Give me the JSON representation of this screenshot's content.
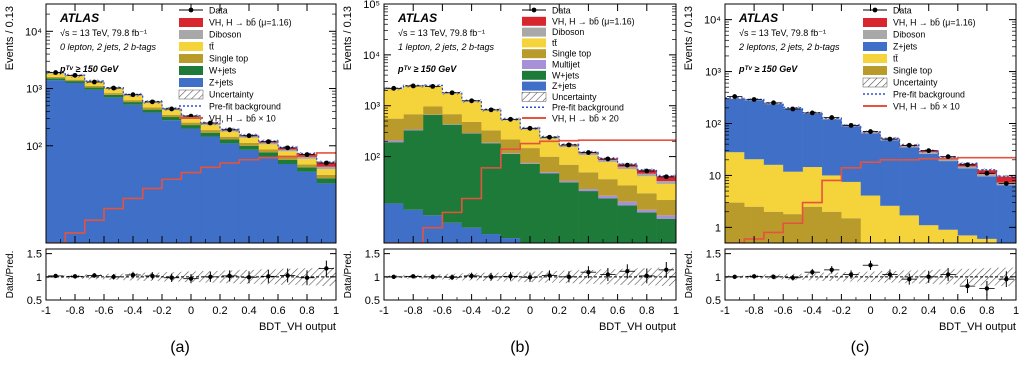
{
  "figure": {
    "panel_captions": [
      "(a)",
      "(b)",
      "(c)"
    ]
  },
  "chart_data": [
    {
      "type": "histogram",
      "caption": "(a)",
      "experiment": "ATLAS",
      "energy_line": "√s = 13 TeV, 79.8 fb⁻¹",
      "selection_line": "0 lepton, 2 jets, 2 b-tags",
      "cut_line": "pᵀᵛ ≥ 150 GeV",
      "ylabel": "Events / 0.13",
      "xlabel": "BDT_VH output",
      "ratio_ylabel": "Data/Pred.",
      "yscale": "log",
      "ylim": [
        2,
        30000
      ],
      "xlim": [
        -1,
        1
      ],
      "ratio_ylim": [
        0.5,
        1.6
      ],
      "yticks": [
        "10²",
        "10³",
        "10⁴"
      ],
      "xticks": [
        "-1",
        "-0.8",
        "-0.6",
        "-0.4",
        "-0.2",
        "0",
        "0.2",
        "0.4",
        "0.6",
        "0.8",
        "1"
      ],
      "ratio_yticks": [
        "0.5",
        "1",
        "1.5"
      ],
      "bin_edges": [
        -1,
        -0.867,
        -0.733,
        -0.6,
        -0.467,
        -0.333,
        -0.2,
        -0.067,
        0.067,
        0.2,
        0.333,
        0.467,
        0.6,
        0.733,
        0.867,
        1
      ],
      "stack": [
        {
          "name": "Z+jets",
          "color": "#3f6fc6",
          "values": [
            1400,
            1250,
            950,
            700,
            520,
            380,
            280,
            200,
            145,
            110,
            85,
            65,
            48,
            35,
            22
          ]
        },
        {
          "name": "W+jets",
          "color": "#1e7a38",
          "values": [
            110,
            100,
            90,
            75,
            60,
            48,
            38,
            30,
            24,
            19,
            15,
            12,
            9,
            7,
            5
          ]
        },
        {
          "name": "Single top",
          "color": "#b89b2a",
          "values": [
            90,
            80,
            70,
            58,
            47,
            38,
            30,
            24,
            19,
            15,
            12,
            9,
            7,
            5,
            4
          ]
        },
        {
          "name": "tt̄",
          "color": "#f5d33b",
          "values": [
            230,
            210,
            180,
            150,
            120,
            92,
            72,
            55,
            43,
            33,
            26,
            20,
            16,
            12,
            8
          ]
        },
        {
          "name": "Diboson",
          "color": "#a8a8a8",
          "values": [
            40,
            38,
            34,
            30,
            26,
            22,
            18,
            15,
            12,
            10,
            8,
            7,
            6,
            5,
            4
          ]
        },
        {
          "name": "VH, H → bb̄ (μ=1.16)",
          "color": "#d7262e",
          "values": [
            4,
            4,
            4,
            4,
            4,
            4,
            4,
            4,
            4,
            4,
            5,
            6,
            7,
            8,
            8
          ]
        }
      ],
      "data_points": [
        1900,
        1700,
        1300,
        1020,
        780,
        585,
        440,
        330,
        250,
        190,
        150,
        118,
        92,
        70,
        50
      ],
      "ratio_points": [
        1.02,
        1.01,
        1.03,
        1.0,
        1.04,
        1.02,
        0.98,
        0.96,
        1.0,
        1.02,
        0.99,
        1.01,
        1.03,
        0.98,
        1.18
      ],
      "signal_scaled_label": "VH, H → bb̄ × 10",
      "signal_scaled": [
        1.5,
        3,
        5,
        8,
        12,
        18,
        26,
        34,
        42,
        50,
        57,
        62,
        65,
        70,
        75
      ],
      "legend": [
        {
          "label": "Data",
          "kind": "data",
          "color": "#000000"
        },
        {
          "label": "VH, H → bb̄ (μ=1.16)",
          "kind": "box",
          "color": "#d7262e"
        },
        {
          "label": "Diboson",
          "kind": "box",
          "color": "#a8a8a8"
        },
        {
          "label": "tt̄",
          "kind": "box",
          "color": "#f5d33b"
        },
        {
          "label": "Single top",
          "kind": "box",
          "color": "#b89b2a"
        },
        {
          "label": "W+jets",
          "kind": "box",
          "color": "#1e7a38"
        },
        {
          "label": "Z+jets",
          "kind": "box",
          "color": "#3f6fc6"
        },
        {
          "label": "Uncertainty",
          "kind": "hatch",
          "color": "#666666"
        },
        {
          "label": "Pre-fit background",
          "kind": "dash",
          "color": "#2b4fd6"
        },
        {
          "label": "VH, H → bb̄ × 10",
          "kind": "line",
          "color": "#e5533f"
        }
      ]
    },
    {
      "type": "histogram",
      "caption": "(b)",
      "experiment": "ATLAS",
      "energy_line": "√s = 13 TeV, 79.8 fb⁻¹",
      "selection_line": "1 lepton, 2 jets, 2 b-tags",
      "cut_line": "pᵀᵛ ≥ 150 GeV",
      "ylabel": "Events / 0.13",
      "xlabel": "BDT_VH output",
      "ratio_ylabel": "Data/Pred.",
      "yscale": "log",
      "ylim": [
        2,
        100000
      ],
      "xlim": [
        -1,
        1
      ],
      "ratio_ylim": [
        0.5,
        1.6
      ],
      "yticks": [
        "10²",
        "10³",
        "10⁴",
        "10⁵"
      ],
      "xticks": [
        "-1",
        "-0.8",
        "-0.6",
        "-0.4",
        "-0.2",
        "0",
        "0.2",
        "0.4",
        "0.6",
        "0.8",
        "1"
      ],
      "ratio_yticks": [
        "0.5",
        "1",
        "1.5"
      ],
      "bin_edges": [
        -1,
        -0.867,
        -0.733,
        -0.6,
        -0.467,
        -0.333,
        -0.2,
        -0.067,
        0.067,
        0.2,
        0.333,
        0.467,
        0.6,
        0.733,
        0.867,
        1
      ],
      "stack": [
        {
          "name": "Z+jets",
          "color": "#3f6fc6",
          "values": [
            12,
            9,
            7,
            5,
            4,
            3,
            2.5,
            2,
            1.5,
            1.2,
            1,
            1,
            1,
            1,
            1
          ]
        },
        {
          "name": "W+jets",
          "color": "#1e7a38",
          "values": [
            180,
            320,
            650,
            420,
            280,
            180,
            110,
            70,
            45,
            30,
            20,
            14,
            10,
            7,
            5
          ]
        },
        {
          "name": "Multijet",
          "color": "#a890d8",
          "values": [
            15,
            12,
            10,
            8,
            6,
            5,
            4,
            3,
            3,
            2,
            2,
            2,
            2,
            1,
            1
          ]
        },
        {
          "name": "Single top",
          "color": "#b89b2a",
          "values": [
            350,
            340,
            300,
            250,
            190,
            140,
            100,
            72,
            50,
            36,
            26,
            19,
            14,
            10,
            7
          ]
        },
        {
          "name": "tt̄",
          "color": "#f5d33b",
          "values": [
            1550,
            1700,
            1450,
            1050,
            720,
            470,
            300,
            190,
            125,
            85,
            58,
            42,
            30,
            22,
            15
          ]
        },
        {
          "name": "Diboson",
          "color": "#a8a8a8",
          "values": [
            60,
            55,
            50,
            42,
            35,
            28,
            22,
            18,
            14,
            11,
            9,
            7,
            6,
            5,
            4
          ]
        },
        {
          "name": "VH, H → bb̄ (μ=1.16)",
          "color": "#d7262e",
          "values": [
            3,
            3,
            3,
            3,
            3,
            3,
            3,
            3,
            3,
            4,
            5,
            6,
            7,
            8,
            8
          ]
        }
      ],
      "data_points": [
        2200,
        2450,
        2400,
        1800,
        1250,
        830,
        540,
        360,
        240,
        170,
        120,
        90,
        68,
        52,
        40
      ],
      "ratio_points": [
        1.0,
        1.01,
        1.0,
        0.99,
        1.02,
        1.0,
        1.01,
        0.99,
        1.03,
        1.0,
        1.1,
        1.05,
        1.12,
        1.02,
        1.15
      ],
      "signal_scaled_label": "VH, H → bb̄ × 20",
      "signal_scaled": [
        1.2,
        2,
        4,
        8,
        15,
        60,
        140,
        180,
        200,
        205,
        210,
        210,
        210,
        210,
        210
      ],
      "legend": [
        {
          "label": "Data",
          "kind": "data",
          "color": "#000000"
        },
        {
          "label": "VH, H → bb̄ (μ=1.16)",
          "kind": "box",
          "color": "#d7262e"
        },
        {
          "label": "Diboson",
          "kind": "box",
          "color": "#a8a8a8"
        },
        {
          "label": "tt̄",
          "kind": "box",
          "color": "#f5d33b"
        },
        {
          "label": "Single top",
          "kind": "box",
          "color": "#b89b2a"
        },
        {
          "label": "Multijet",
          "kind": "box",
          "color": "#a890d8"
        },
        {
          "label": "W+jets",
          "kind": "box",
          "color": "#1e7a38"
        },
        {
          "label": "Z+jets",
          "kind": "box",
          "color": "#3f6fc6"
        },
        {
          "label": "Uncertainty",
          "kind": "hatch",
          "color": "#666666"
        },
        {
          "label": "Pre-fit background",
          "kind": "dash",
          "color": "#2b4fd6"
        },
        {
          "label": "VH, H → bb̄ × 20",
          "kind": "line",
          "color": "#e5533f"
        }
      ]
    },
    {
      "type": "histogram",
      "caption": "(c)",
      "experiment": "ATLAS",
      "energy_line": "√s = 13 TeV, 79.8 fb⁻¹",
      "selection_line": "2 leptons, 2 jets, 2 b-tags",
      "cut_line": "pᵀᵛ ≥ 150 GeV",
      "ylabel": "Events / 0.13",
      "xlabel": "BDT_VH output",
      "ratio_ylabel": "Data/Pred.",
      "yscale": "log",
      "ylim": [
        0.5,
        20000
      ],
      "xlim": [
        -1,
        1
      ],
      "ratio_ylim": [
        0.5,
        1.6
      ],
      "yticks": [
        "1",
        "10",
        "10²",
        "10³",
        "10⁴"
      ],
      "xticks": [
        "-1",
        "-0.8",
        "-0.6",
        "-0.4",
        "-0.2",
        "0",
        "0.2",
        "0.4",
        "0.6",
        "0.8",
        "1"
      ],
      "ratio_yticks": [
        "0.5",
        "1",
        "1.5"
      ],
      "bin_edges": [
        -1,
        -0.867,
        -0.733,
        -0.6,
        -0.467,
        -0.333,
        -0.2,
        -0.067,
        0.067,
        0.2,
        0.333,
        0.467,
        0.6,
        0.733,
        0.867,
        1
      ],
      "stack": [
        {
          "name": "Single top",
          "color": "#b89b2a",
          "values": [
            3,
            2.5,
            2,
            1.8,
            2.5,
            2,
            1.5,
            0.1,
            0.1,
            0.1,
            0.1,
            0.1,
            0.1,
            0.1,
            0.1
          ]
        },
        {
          "name": "tt̄",
          "color": "#f5d33b",
          "values": [
            25,
            18,
            14,
            10,
            12,
            8,
            6,
            4,
            2.5,
            1.6,
            1.0,
            0.8,
            0.6,
            0.5,
            0.4
          ]
        },
        {
          "name": "Z+jets",
          "color": "#3f6fc6",
          "values": [
            270,
            260,
            220,
            180,
            140,
            110,
            80,
            60,
            45,
            33,
            25,
            18,
            13,
            9,
            6
          ]
        },
        {
          "name": "Diboson",
          "color": "#a8a8a8",
          "values": [
            6,
            6,
            5,
            5,
            4,
            4,
            3,
            3,
            2.5,
            2,
            2,
            1.5,
            1.2,
            1,
            0.8
          ]
        },
        {
          "name": "VH, H → bb̄ (μ=1.16)",
          "color": "#d7262e",
          "values": [
            0.3,
            0.3,
            0.3,
            0.3,
            0.4,
            0.5,
            0.6,
            0.8,
            1.0,
            1.2,
            1.4,
            1.6,
            1.8,
            2.0,
            2.2
          ]
        }
      ],
      "data_points": [
        330,
        290,
        250,
        190,
        160,
        130,
        92,
        70,
        50,
        38,
        30,
        23,
        16,
        11,
        7
      ],
      "ratio_points": [
        1.0,
        1.01,
        1.0,
        0.98,
        1.1,
        1.15,
        1.05,
        1.25,
        1.05,
        0.95,
        1.0,
        1.05,
        0.8,
        0.75,
        0.95
      ],
      "signal_scaled_label": "VH, H → bb̄ × 10",
      "signal_scaled": [
        0.5,
        0.6,
        0.8,
        1.2,
        3,
        8,
        14,
        18,
        20,
        20,
        21,
        21,
        22,
        22,
        22
      ],
      "legend": [
        {
          "label": "Data",
          "kind": "data",
          "color": "#000000"
        },
        {
          "label": "VH, H → bb̄ (μ=1.16)",
          "kind": "box",
          "color": "#d7262e"
        },
        {
          "label": "Diboson",
          "kind": "box",
          "color": "#a8a8a8"
        },
        {
          "label": "Z+jets",
          "kind": "box",
          "color": "#3f6fc6"
        },
        {
          "label": "tt̄",
          "kind": "box",
          "color": "#f5d33b"
        },
        {
          "label": "Single top",
          "kind": "box",
          "color": "#b89b2a"
        },
        {
          "label": "Uncertainty",
          "kind": "hatch",
          "color": "#666666"
        },
        {
          "label": "Pre-fit background",
          "kind": "dash",
          "color": "#2b4fd6"
        },
        {
          "label": "VH, H → bb̄ × 10",
          "kind": "line",
          "color": "#e5533f"
        }
      ]
    }
  ]
}
